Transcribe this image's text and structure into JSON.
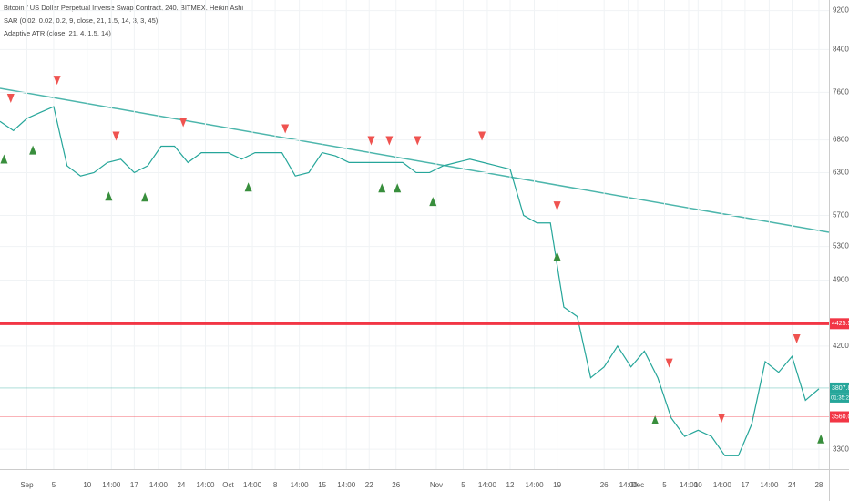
{
  "chart_data": {
    "type": "line",
    "title": "Bitcoin / US Dollar Perpetual Inverse Swap Contract, 240, BITMEX, Heikin Ashi",
    "indicators": [
      "SAR (0.02, 0.02, 0.2, 9, close, 21, 1.5, 14, 3, 3, 45)",
      "Adaptive ATR (close, 21, 4, 1.5, 14)"
    ],
    "log_scale": true,
    "grid": true,
    "xlim": [
      0,
      123.5
    ],
    "ylim": [
      3150,
      9430
    ],
    "yticks": [
      {
        "value": 9200,
        "label": "9200.0"
      },
      {
        "value": 8400,
        "label": "8400.0"
      },
      {
        "value": 7600,
        "label": "7600.0"
      },
      {
        "value": 6800,
        "label": "6800.0"
      },
      {
        "value": 6300,
        "label": "6300.0"
      },
      {
        "value": 5700,
        "label": "5700.0"
      },
      {
        "value": 5300,
        "label": "5300.0"
      },
      {
        "value": 4900,
        "label": "4900.0"
      },
      {
        "value": 4200,
        "label": "4200.0"
      },
      {
        "value": 3300,
        "label": "3300.0"
      }
    ],
    "xticks": [
      {
        "value": 4,
        "label": "Sep"
      },
      {
        "value": 8,
        "label": "5"
      },
      {
        "value": 13,
        "label": "10"
      },
      {
        "value": 16.6,
        "label": "14:00"
      },
      {
        "value": 20,
        "label": "17"
      },
      {
        "value": 23.6,
        "label": "14:00"
      },
      {
        "value": 27,
        "label": "24"
      },
      {
        "value": 30.6,
        "label": "14:00"
      },
      {
        "value": 34,
        "label": "Oct"
      },
      {
        "value": 37.6,
        "label": "14:00"
      },
      {
        "value": 41,
        "label": "8"
      },
      {
        "value": 44.6,
        "label": "14:00"
      },
      {
        "value": 48,
        "label": "15"
      },
      {
        "value": 51.6,
        "label": "14:00"
      },
      {
        "value": 55,
        "label": "22"
      },
      {
        "value": 59,
        "label": "26"
      },
      {
        "value": 65,
        "label": "Nov"
      },
      {
        "value": 69,
        "label": "5"
      },
      {
        "value": 72.6,
        "label": "14:00"
      },
      {
        "value": 76,
        "label": "12"
      },
      {
        "value": 79.6,
        "label": "14:00"
      },
      {
        "value": 83,
        "label": "19"
      },
      {
        "value": 90,
        "label": "26"
      },
      {
        "value": 93.6,
        "label": "14:00"
      },
      {
        "value": 95,
        "label": "Dec"
      },
      {
        "value": 99,
        "label": "5"
      },
      {
        "value": 102.6,
        "label": "14:00"
      },
      {
        "value": 104,
        "label": "10"
      },
      {
        "value": 107.6,
        "label": "14:00"
      },
      {
        "value": 111,
        "label": "17"
      },
      {
        "value": 114.6,
        "label": "14:00"
      },
      {
        "value": 118,
        "label": "24"
      },
      {
        "value": 122,
        "label": "28"
      }
    ],
    "x": [
      0,
      2,
      4,
      6,
      8,
      10,
      12,
      14,
      16,
      18,
      20,
      22,
      24,
      26,
      28,
      30,
      32,
      34,
      36,
      38,
      40,
      42,
      44,
      46,
      48,
      50,
      52,
      54,
      56,
      58,
      60,
      62,
      64,
      66,
      68,
      70,
      72,
      74,
      76,
      78,
      80,
      82,
      84,
      86,
      88,
      90,
      92,
      94,
      96,
      98,
      100,
      102,
      104,
      106,
      108,
      110,
      112,
      114,
      116,
      118,
      120,
      122
    ],
    "series": [
      {
        "color": "#26a69a",
        "values": [
          7100,
          6950,
          7150,
          7250,
          7350,
          6400,
          6250,
          6300,
          6450,
          6500,
          6300,
          6400,
          6700,
          6700,
          6450,
          6600,
          6600,
          6600,
          6500,
          6600,
          6600,
          6600,
          6250,
          6300,
          6600,
          6550,
          6450,
          6450,
          6450,
          6450,
          6450,
          6300,
          6300,
          6400,
          6450,
          6500,
          6450,
          6400,
          6350,
          5700,
          5600,
          5600,
          4600,
          4500,
          3900,
          4000,
          4200,
          4000,
          4150,
          3900,
          3550,
          3400,
          3450,
          3400,
          3250,
          3250,
          3500,
          4050,
          3950,
          4100,
          3700,
          3800
        ]
      }
    ],
    "sell_signals": {
      "color": "#ef5350",
      "x": [
        1.6,
        8.5,
        17.3,
        27.3,
        42.5,
        55.3,
        58,
        62.2,
        71.8,
        83,
        99.7,
        107.5,
        118.7
      ],
      "values": [
        7493,
        7817,
        6859,
        7082,
        6977,
        6786,
        6786,
        6786,
        6859,
        5826,
        4036,
        3549,
        4271
      ]
    },
    "buy_signals": {
      "color": "#388e3c",
      "x": [
        0.6,
        4.9,
        16.2,
        21.6,
        37,
        56.9,
        59.2,
        64.5,
        83,
        97.6,
        122.3
      ],
      "values": [
        6503,
        6641,
        5963,
        5950,
        6091,
        6078,
        6078,
        5889,
        5182,
        3534,
        3381
      ]
    },
    "price_labels": [
      {
        "value": 4425.5,
        "label": "4425.5",
        "color": "#f23645"
      },
      {
        "value": 3807.8,
        "label": "3807.8",
        "color": "#26a69a"
      },
      {
        "value": 3560.0,
        "label": "3560.0",
        "color": "#f23645"
      }
    ],
    "countdown": "01:35:27"
  }
}
